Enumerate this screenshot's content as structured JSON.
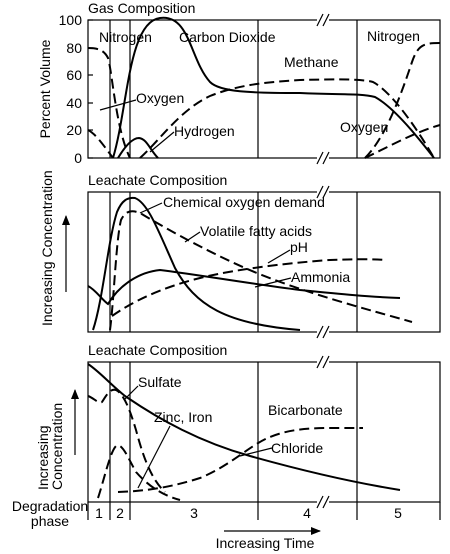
{
  "chart_data": [
    {
      "type": "line",
      "title": "Gas Composition",
      "ylabel": "Percent Volume",
      "ylim": [
        0,
        100
      ],
      "yticks": [
        "0",
        "20",
        "40",
        "60",
        "80",
        "100"
      ],
      "series": [
        {
          "name": "Nitrogen",
          "style": "dashed",
          "values": [
            [
              0,
              80
            ],
            [
              0.8,
              78
            ],
            [
              1.2,
              40
            ],
            [
              1.6,
              0
            ]
          ]
        },
        {
          "name": "Oxygen",
          "style": "dashed",
          "values": [
            [
              0,
              20
            ],
            [
              0.5,
              16
            ],
            [
              1.0,
              8
            ],
            [
              1.6,
              0
            ]
          ]
        },
        {
          "name": "Carbon Dioxide",
          "style": "solid",
          "values": [
            [
              1.5,
              0
            ],
            [
              2.5,
              80
            ],
            [
              4,
              80
            ],
            [
              5.5,
              50
            ],
            [
              8,
              48
            ],
            [
              12,
              46
            ],
            [
              13,
              30
            ],
            [
              14,
              0
            ]
          ]
        },
        {
          "name": "Hydrogen",
          "style": "solid",
          "values": [
            [
              1.5,
              0
            ],
            [
              2.5,
              12
            ],
            [
              3.0,
              15
            ],
            [
              3.5,
              10
            ],
            [
              4.5,
              0
            ]
          ]
        },
        {
          "name": "Methane",
          "style": "dashed",
          "values": [
            [
              2.5,
              0
            ],
            [
              4,
              25
            ],
            [
              5.5,
              50
            ],
            [
              8,
              56
            ],
            [
              12,
              56
            ],
            [
              13,
              40
            ],
            [
              14,
              0
            ]
          ]
        },
        {
          "name": "Nitrogen",
          "style": "dashed",
          "values": [
            [
              12,
              0
            ],
            [
              13,
              40
            ],
            [
              14,
              82
            ]
          ]
        },
        {
          "name": "Oxygen",
          "style": "dashed",
          "values": [
            [
              12,
              0
            ],
            [
              13,
              12
            ],
            [
              14,
              22
            ]
          ]
        }
      ]
    },
    {
      "type": "line",
      "title": "Leachate Composition",
      "ylabel": "Increasing Concentration",
      "series": [
        {
          "name": "Chemical oxygen demand",
          "style": "solid"
        },
        {
          "name": "Volatile fatty acids",
          "style": "dashed"
        },
        {
          "name": "pH",
          "style": "dashed"
        },
        {
          "name": "Ammonia",
          "style": "solid"
        }
      ]
    },
    {
      "type": "line",
      "title": "Leachate Composition",
      "ylabel": "Increasing Concentration",
      "series": [
        {
          "name": "Sulfate",
          "style": "dashed"
        },
        {
          "name": "Zinc, Iron",
          "style": "dashed"
        },
        {
          "name": "Bicarbonate",
          "style": "dashed"
        },
        {
          "name": "Chloride",
          "style": "solid"
        }
      ]
    }
  ],
  "phase_axis": {
    "label_line1": "Degradation",
    "label_line2": "phase",
    "phases": [
      "1",
      "2",
      "3",
      "4",
      "5"
    ]
  },
  "xlabel": "Increasing Time",
  "panel1": {
    "title": "Gas Composition",
    "ylabel": "Percent Volume",
    "ticks": [
      "0",
      "20",
      "40",
      "60",
      "80",
      "100"
    ],
    "labels": {
      "nitrogen_left": "Nitrogen",
      "carbon_dioxide": "Carbon Dioxide",
      "methane": "Methane",
      "nitrogen_right": "Nitrogen",
      "oxygen_left": "Oxygen",
      "hydrogen": "Hydrogen",
      "oxygen_right": "Oxygen"
    }
  },
  "panel2": {
    "title": "Leachate Composition",
    "ylabel": "Increasing Concentration",
    "labels": {
      "cod": "Chemical oxygen demand",
      "vfa": "Volatile fatty acids",
      "ph": "pH",
      "ammonia": "Ammonia"
    }
  },
  "panel3": {
    "title": "Leachate Composition",
    "ylabel_line1": "Increasing",
    "ylabel_line2": "Concentration",
    "labels": {
      "sulfate": "Sulfate",
      "zinc_iron": "Zinc, Iron",
      "bicarbonate": "Bicarbonate",
      "chloride": "Chloride"
    }
  }
}
